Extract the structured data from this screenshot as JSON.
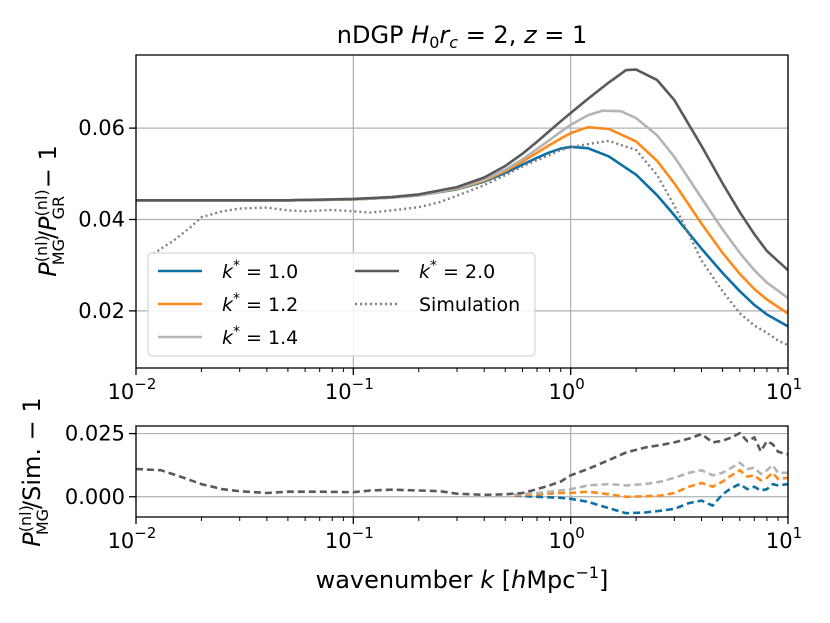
{
  "chart_data": [
    {
      "panel": "top",
      "type": "line",
      "title": "nDGP H₀rᴄ = 2, z = 1",
      "title_parts": {
        "prefix": "nDGP ",
        "H": "H",
        "H_sub": "0",
        "r": "r",
        "r_sub": "c",
        "eq1": " = 2, ",
        "z": "z",
        "eq2": " = 1"
      },
      "ylabel": "P_MG^(nl)/P_GR^(nl) − 1",
      "ylabel_parts": {
        "P1": "P",
        "sub1": "MG",
        "sup1": "(nl)",
        "slash": "/",
        "P2": "P",
        "sub2": "GR",
        "sup2": "(nl)",
        "rest": " − 1"
      },
      "xscale": "log",
      "xlim": [
        0.01,
        10
      ],
      "ylim": [
        0.0075,
        0.076
      ],
      "yticks": [
        0.02,
        0.04,
        0.06
      ],
      "ytick_labels": [
        "0.02",
        "0.04",
        "0.06"
      ],
      "xtick_labels": [
        {
          "base": "10",
          "exp": "−2"
        },
        {
          "base": "10",
          "exp": "−1"
        },
        {
          "base": "10",
          "exp": "0"
        },
        {
          "base": "10",
          "exp": "1"
        }
      ],
      "grid": true,
      "legend_position": "lower-left",
      "series": [
        {
          "name": "k* = 1.0",
          "label_k": "k",
          "label_sup": "*",
          "label_val": " = 1.0",
          "color": "#0c6fa6",
          "style": "solid",
          "x": [
            0.01,
            0.02,
            0.05,
            0.1,
            0.15,
            0.2,
            0.3,
            0.4,
            0.5,
            0.6,
            0.7,
            0.8,
            0.9,
            1.0,
            1.2,
            1.5,
            2.0,
            2.5,
            3.0,
            4.0,
            5.0,
            6.0,
            7.0,
            8.0,
            10.0
          ],
          "y": [
            0.0442,
            0.0442,
            0.0442,
            0.0444,
            0.0448,
            0.0453,
            0.0466,
            0.0483,
            0.0502,
            0.052,
            0.0535,
            0.0547,
            0.0555,
            0.0559,
            0.0556,
            0.0538,
            0.0498,
            0.0453,
            0.0409,
            0.0336,
            0.0283,
            0.0243,
            0.0213,
            0.0192,
            0.0166
          ]
        },
        {
          "name": "k* = 1.2",
          "label_k": "k",
          "label_sup": "*",
          "label_val": " = 1.2",
          "color": "#ff8a1a",
          "style": "solid",
          "x": [
            0.01,
            0.02,
            0.05,
            0.1,
            0.15,
            0.2,
            0.3,
            0.4,
            0.5,
            0.6,
            0.7,
            0.8,
            0.9,
            1.0,
            1.2,
            1.5,
            2.0,
            2.5,
            3.0,
            4.0,
            5.0,
            6.0,
            7.0,
            8.0,
            10.0
          ],
          "y": [
            0.0442,
            0.0442,
            0.0442,
            0.0444,
            0.0448,
            0.0453,
            0.0467,
            0.0485,
            0.0506,
            0.0527,
            0.0546,
            0.0563,
            0.0577,
            0.0589,
            0.0602,
            0.0598,
            0.0571,
            0.0528,
            0.0479,
            0.0391,
            0.0327,
            0.0281,
            0.0248,
            0.0225,
            0.0194
          ]
        },
        {
          "name": "k* = 1.4",
          "label_k": "k",
          "label_sup": "*",
          "label_val": " = 1.4",
          "color": "#b4b4b4",
          "style": "solid",
          "x": [
            0.01,
            0.02,
            0.05,
            0.1,
            0.15,
            0.2,
            0.3,
            0.4,
            0.5,
            0.6,
            0.7,
            0.8,
            0.9,
            1.0,
            1.2,
            1.4,
            1.7,
            2.0,
            2.5,
            3.0,
            4.0,
            5.0,
            6.0,
            7.0,
            8.0,
            10.0
          ],
          "y": [
            0.0442,
            0.0442,
            0.0442,
            0.0444,
            0.0448,
            0.0453,
            0.0468,
            0.0487,
            0.0509,
            0.0532,
            0.0554,
            0.0574,
            0.0592,
            0.0607,
            0.0628,
            0.0638,
            0.0637,
            0.0622,
            0.0584,
            0.0537,
            0.0447,
            0.0378,
            0.0327,
            0.0289,
            0.0262,
            0.0228
          ]
        },
        {
          "name": "k* = 2.0",
          "label_k": "k",
          "label_sup": "*",
          "label_val": " = 2.0",
          "color": "#595959",
          "style": "solid",
          "x": [
            0.01,
            0.02,
            0.05,
            0.1,
            0.15,
            0.2,
            0.3,
            0.4,
            0.5,
            0.6,
            0.7,
            0.8,
            0.9,
            1.0,
            1.2,
            1.5,
            1.8,
            2.0,
            2.5,
            3.0,
            4.0,
            5.0,
            6.0,
            7.0,
            8.0,
            10.0
          ],
          "y": [
            0.0442,
            0.0442,
            0.0442,
            0.0445,
            0.0449,
            0.0455,
            0.0471,
            0.0492,
            0.0517,
            0.0544,
            0.057,
            0.0594,
            0.0615,
            0.0633,
            0.0664,
            0.07,
            0.0727,
            0.0728,
            0.0705,
            0.0661,
            0.0561,
            0.0479,
            0.0416,
            0.0368,
            0.0331,
            0.0289
          ]
        },
        {
          "name": "Simulation",
          "label_k": "",
          "label_sup": "",
          "label_val": "Simulation",
          "color": "#7f7f7f",
          "style": "dotted",
          "x": [
            0.012,
            0.015,
            0.018,
            0.02,
            0.025,
            0.03,
            0.04,
            0.05,
            0.06,
            0.08,
            0.1,
            0.12,
            0.15,
            0.2,
            0.25,
            0.3,
            0.4,
            0.5,
            0.6,
            0.7,
            0.8,
            0.9,
            1.0,
            1.2,
            1.5,
            2.0,
            2.5,
            3.0,
            3.5,
            4.0,
            5.0,
            6.0,
            7.0,
            8.0,
            9.0,
            10.0
          ],
          "y": [
            0.0325,
            0.0355,
            0.0385,
            0.0405,
            0.0418,
            0.0424,
            0.0426,
            0.042,
            0.0418,
            0.0421,
            0.0418,
            0.0415,
            0.042,
            0.0427,
            0.0438,
            0.0452,
            0.0475,
            0.0497,
            0.0516,
            0.053,
            0.0541,
            0.0552,
            0.0558,
            0.0565,
            0.0572,
            0.0552,
            0.0497,
            0.043,
            0.0368,
            0.031,
            0.0243,
            0.0195,
            0.0168,
            0.0152,
            0.0135,
            0.0125
          ]
        }
      ]
    },
    {
      "panel": "bottom",
      "type": "line",
      "xlabel": "wavenumber k [hMpc⁻¹]",
      "xlabel_parts": {
        "pre": "wavenumber ",
        "k": "k",
        "open": " [",
        "h": "h",
        "unit": "Mpc",
        "exp": "−1",
        "close": "]"
      },
      "ylabel": "P_MG^(nl)/Sim. − 1",
      "ylabel_parts": {
        "P": "P",
        "sub": "MG",
        "sup": "(nl)",
        "rest": "/Sim. − 1"
      },
      "xscale": "log",
      "xlim": [
        0.01,
        10
      ],
      "ylim": [
        -0.008,
        0.028
      ],
      "yticks": [
        0.0,
        0.025
      ],
      "ytick_labels": [
        "0.000",
        "0.025"
      ],
      "xtick_labels": [
        {
          "base": "10",
          "exp": "−2"
        },
        {
          "base": "10",
          "exp": "−1"
        },
        {
          "base": "10",
          "exp": "0"
        },
        {
          "base": "10",
          "exp": "1"
        }
      ],
      "grid": true,
      "series": [
        {
          "name": "k* = 1.0",
          "color": "#0c6fa6",
          "style": "dashed",
          "x": [
            0.55,
            0.7,
            0.9,
            1.0,
            1.2,
            1.5,
            1.8,
            2.2,
            2.6,
            3.0,
            3.5,
            4.0,
            4.5,
            5.0,
            5.5,
            6.0,
            6.5,
            7.0,
            7.5,
            8.0,
            8.5,
            9.0,
            10.0
          ],
          "y": [
            0.0005,
            0.0,
            -0.0004,
            -0.0008,
            -0.002,
            -0.0045,
            -0.0065,
            -0.0062,
            -0.0055,
            -0.0048,
            -0.0025,
            -0.0015,
            -0.0035,
            0.001,
            0.0035,
            0.005,
            0.003,
            0.004,
            0.0025,
            0.003,
            0.005,
            0.0045,
            0.005
          ]
        },
        {
          "name": "k* = 1.2",
          "color": "#ff8a1a",
          "style": "dashed",
          "x": [
            0.55,
            0.7,
            0.9,
            1.0,
            1.2,
            1.5,
            1.8,
            2.2,
            2.6,
            3.0,
            3.5,
            4.0,
            4.5,
            5.0,
            5.5,
            6.0,
            6.5,
            7.0,
            7.5,
            8.0,
            8.5,
            9.0,
            10.0
          ],
          "y": [
            0.0005,
            0.001,
            0.0015,
            0.0015,
            0.002,
            0.001,
            0.0,
            0.0002,
            0.0005,
            0.0015,
            0.004,
            0.0055,
            0.004,
            0.006,
            0.0085,
            0.0105,
            0.008,
            0.0085,
            0.0065,
            0.0075,
            0.0095,
            0.007,
            0.0075
          ]
        },
        {
          "name": "k* = 1.4",
          "color": "#b4b4b4",
          "style": "dashed",
          "x": [
            0.55,
            0.7,
            0.9,
            1.0,
            1.2,
            1.5,
            1.8,
            2.2,
            2.6,
            3.0,
            3.5,
            4.0,
            4.5,
            5.0,
            5.5,
            6.0,
            6.5,
            7.0,
            7.5,
            8.0,
            8.5,
            9.0,
            10.0
          ],
          "y": [
            0.0008,
            0.0015,
            0.0025,
            0.003,
            0.0045,
            0.005,
            0.0045,
            0.005,
            0.006,
            0.0075,
            0.0095,
            0.0105,
            0.0085,
            0.0095,
            0.0115,
            0.0135,
            0.011,
            0.0115,
            0.009,
            0.0105,
            0.0125,
            0.0095,
            0.0095
          ]
        },
        {
          "name": "k* = 2.0",
          "color": "#595959",
          "style": "dashed",
          "x": [
            0.01,
            0.013,
            0.016,
            0.02,
            0.025,
            0.03,
            0.04,
            0.05,
            0.07,
            0.1,
            0.12,
            0.15,
            0.2,
            0.25,
            0.3,
            0.4,
            0.5,
            0.6,
            0.7,
            0.8,
            0.9,
            1.0,
            1.2,
            1.5,
            1.8,
            2.2,
            2.6,
            3.0,
            3.5,
            4.0,
            4.5,
            5.0,
            5.5,
            6.0,
            6.5,
            7.0,
            7.5,
            8.0,
            8.5,
            9.0,
            10.0
          ],
          "y": [
            0.011,
            0.0105,
            0.008,
            0.005,
            0.003,
            0.0022,
            0.0015,
            0.002,
            0.002,
            0.0018,
            0.0025,
            0.0028,
            0.0025,
            0.0022,
            0.0012,
            0.0008,
            0.001,
            0.0015,
            0.003,
            0.0045,
            0.006,
            0.0085,
            0.011,
            0.0145,
            0.0175,
            0.0195,
            0.0205,
            0.0215,
            0.023,
            0.0248,
            0.0215,
            0.0222,
            0.0235,
            0.0252,
            0.022,
            0.0235,
            0.018,
            0.022,
            0.0208,
            0.0178,
            0.0168
          ]
        }
      ]
    }
  ]
}
